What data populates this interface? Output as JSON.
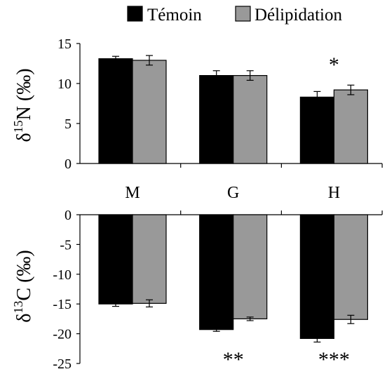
{
  "chart_data": [
    {
      "type": "bar",
      "categories": [
        "M",
        "G",
        "H"
      ],
      "series": [
        {
          "name": "Témoin",
          "color": "#000000",
          "values": [
            13.1,
            11.0,
            8.3
          ],
          "errors": [
            0.3,
            0.6,
            0.7
          ]
        },
        {
          "name": "Délipidation",
          "color": "#999999",
          "values": [
            12.9,
            11.0,
            9.2
          ],
          "errors": [
            0.6,
            0.6,
            0.6
          ]
        }
      ],
      "ylabel_prefix": "δ",
      "ylabel_sup": "15",
      "ylabel_suffix": "N (‰)",
      "ylim": [
        0,
        15
      ],
      "yticks": [
        "0",
        "5",
        "10",
        "15"
      ],
      "annotations": [
        {
          "category": "H",
          "text": "*"
        }
      ]
    },
    {
      "type": "bar",
      "categories": [
        "M",
        "G",
        "H"
      ],
      "series": [
        {
          "name": "Témoin",
          "color": "#000000",
          "values": [
            -15.0,
            -19.3,
            -20.8
          ],
          "errors": [
            0.4,
            0.3,
            0.6
          ]
        },
        {
          "name": "Délipidation",
          "color": "#999999",
          "values": [
            -14.9,
            -17.5,
            -17.6
          ],
          "errors": [
            0.6,
            0.3,
            0.7
          ]
        }
      ],
      "ylabel_prefix": "δ",
      "ylabel_sup": "13",
      "ylabel_suffix": "C (‰)",
      "ylim": [
        -25,
        0
      ],
      "yticks": [
        "0",
        "-5",
        "-10",
        "-15",
        "-20",
        "-25"
      ],
      "annotations": [
        {
          "category": "G",
          "text": "**"
        },
        {
          "category": "H",
          "text": "***"
        }
      ]
    }
  ],
  "legend": [
    {
      "label": "Témoin",
      "color": "#000000"
    },
    {
      "label": "Délipidation",
      "color": "#999999"
    }
  ]
}
